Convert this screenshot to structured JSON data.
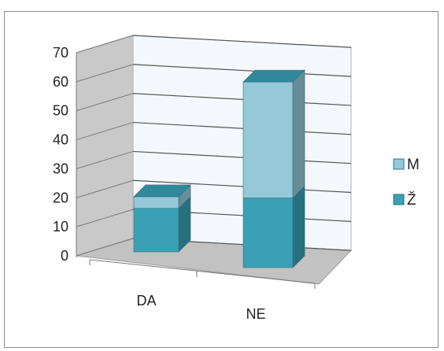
{
  "chart_data": {
    "type": "bar",
    "stacked": true,
    "three_d": true,
    "categories": [
      "DA",
      "NE"
    ],
    "series": [
      {
        "name": "Ž",
        "values": [
          15,
          24
        ],
        "color": "#3aa0b5"
      },
      {
        "name": "M",
        "values": [
          4,
          40
        ],
        "color": "#96c9d8"
      }
    ],
    "ylim": [
      0,
      70
    ],
    "yticks": [
      "0",
      "10",
      "20",
      "30",
      "40",
      "50",
      "60",
      "70"
    ],
    "grid": true,
    "legend": {
      "position": "right",
      "order": [
        "M",
        "Ž"
      ]
    }
  }
}
